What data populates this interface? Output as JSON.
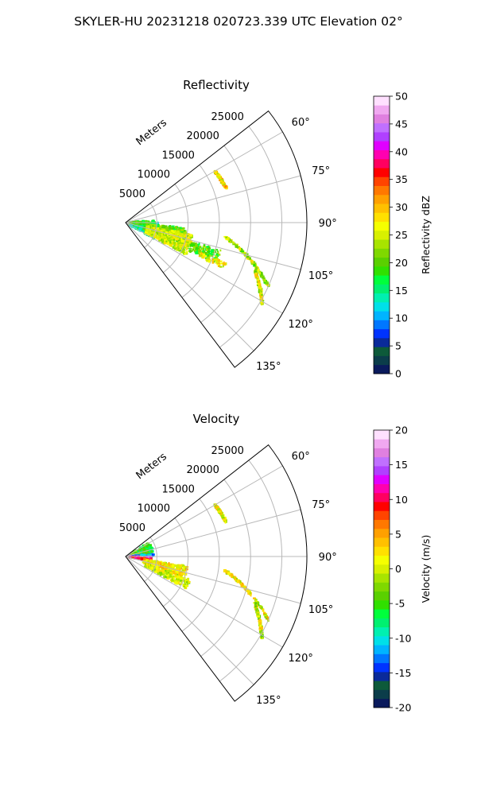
{
  "figure": {
    "suptitle": "SKYLER-HU  20231218  020723.339 UTC Elevation 02°"
  },
  "chart_data": [
    {
      "type": "heatmap",
      "projection": "polar-sector",
      "title": "Reflectivity",
      "radial_label": "Meters",
      "radial_ticks": [
        5000,
        10000,
        15000,
        20000,
        25000
      ],
      "radial_tick_labels": [
        "5000",
        "10000",
        "15000",
        "20000",
        "25000"
      ],
      "rlim": [
        0,
        29000
      ],
      "azimuth_ticks": [
        60,
        75,
        90,
        105,
        120,
        135
      ],
      "azimuth_tick_labels": [
        "60°",
        "75°",
        "90°",
        "105°",
        "120°",
        "135°"
      ],
      "azimuth_range": [
        52,
        143
      ],
      "grid": true,
      "colorbar": {
        "label": "Reflectivity dBZ",
        "range": [
          0,
          50
        ],
        "ticks": [
          0,
          5,
          10,
          15,
          20,
          25,
          30,
          35,
          40,
          45,
          50
        ],
        "tick_labels": [
          "0",
          "5",
          "10",
          "15",
          "20",
          "25",
          "30",
          "35",
          "40",
          "45",
          "50"
        ],
        "colors": [
          "#0a1a5c",
          "#0b3d4a",
          "#0d5a3a",
          "#0a2a9a",
          "#0033ff",
          "#0077ff",
          "#00b4ff",
          "#00e0e8",
          "#00f0b0",
          "#00f070",
          "#00ff3c",
          "#30e000",
          "#5ad000",
          "#7fd800",
          "#a8e400",
          "#d8f000",
          "#f5ff00",
          "#ffe000",
          "#ffc000",
          "#ffa000",
          "#ff7800",
          "#ff4400",
          "#ff0000",
          "#ff0060",
          "#ff00b0",
          "#e000ff",
          "#b040ff",
          "#c070ff",
          "#e080e0",
          "#f0a8f0",
          "#ffe0ff"
        ]
      },
      "regions": [
        {
          "az": [
            90,
            120
          ],
          "r": [
            400,
            5200
          ],
          "value": 15
        },
        {
          "az": [
            86,
            96
          ],
          "r": [
            300,
            4500
          ],
          "value": 20
        },
        {
          "az": [
            95,
            110
          ],
          "r": [
            3000,
            9800
          ],
          "value": 20
        },
        {
          "az": [
            100,
            118
          ],
          "r": [
            3500,
            11000
          ],
          "value": 25
        },
        {
          "az": [
            106,
            114
          ],
          "r": [
            11000,
            16000
          ],
          "value": 20
        },
        {
          "az": [
            112,
            115
          ],
          "r": [
            13000,
            17500
          ],
          "value": 27
        }
      ],
      "lines": [
        {
          "r": [
            16500,
            17000
          ],
          "az": [
            60,
            71
          ],
          "value": 28
        },
        {
          "r": [
            16000,
            25000
          ],
          "az": [
            98,
            114
          ],
          "value": 24
        },
        {
          "r": [
            22000,
            25500
          ],
          "az": [
            110,
            121
          ],
          "value": 25
        }
      ]
    },
    {
      "type": "heatmap",
      "projection": "polar-sector",
      "title": "Velocity",
      "radial_label": "Meters",
      "radial_ticks": [
        5000,
        10000,
        15000,
        20000,
        25000
      ],
      "radial_tick_labels": [
        "5000",
        "10000",
        "15000",
        "20000",
        "25000"
      ],
      "rlim": [
        0,
        29000
      ],
      "azimuth_ticks": [
        60,
        75,
        90,
        105,
        120,
        135
      ],
      "azimuth_tick_labels": [
        "60°",
        "75°",
        "90°",
        "105°",
        "120°",
        "135°"
      ],
      "azimuth_range": [
        52,
        143
      ],
      "grid": true,
      "colorbar": {
        "label": "Velocity (m/s)",
        "range": [
          -20,
          20
        ],
        "ticks": [
          -20,
          -15,
          -10,
          -5,
          0,
          5,
          10,
          15,
          20
        ],
        "tick_labels": [
          "-20",
          "-15",
          "-10",
          "-5",
          "0",
          "5",
          "10",
          "15",
          "20"
        ],
        "colors": [
          "#0a1a5c",
          "#0b3d4a",
          "#0d5a3a",
          "#0a2a9a",
          "#0033ff",
          "#0077ff",
          "#00b4ff",
          "#00e0e8",
          "#00f0b0",
          "#00f070",
          "#00ff3c",
          "#30e000",
          "#5ad000",
          "#7fd800",
          "#a8e400",
          "#d8f000",
          "#f5ff00",
          "#ffe000",
          "#ffc000",
          "#ffa000",
          "#ff7800",
          "#ff4400",
          "#ff0000",
          "#ff0060",
          "#ff00b0",
          "#e000ff",
          "#b040ff",
          "#c070ff",
          "#e080e0",
          "#f0a8f0",
          "#ffe0ff"
        ]
      },
      "regions": [
        {
          "az": [
            60,
            85
          ],
          "r": [
            400,
            4500
          ],
          "value": -5
        },
        {
          "az": [
            84,
            92
          ],
          "r": [
            300,
            4500
          ],
          "value": -12
        },
        {
          "az": [
            91,
            96
          ],
          "r": [
            300,
            4000
          ],
          "value": 14
        },
        {
          "az": [
            95,
            99
          ],
          "r": [
            300,
            4200
          ],
          "value": 9
        },
        {
          "az": [
            99,
            110
          ],
          "r": [
            3000,
            10000
          ],
          "value": 2
        },
        {
          "az": [
            110,
            118
          ],
          "r": [
            3500,
            11000
          ],
          "value": 0
        }
      ],
      "lines": [
        {
          "r": [
            16500,
            17000
          ],
          "az": [
            60,
            71
          ],
          "value": 1
        },
        {
          "r": [
            16000,
            25000
          ],
          "az": [
            98,
            114
          ],
          "value": 1
        },
        {
          "r": [
            22000,
            25500
          ],
          "az": [
            110,
            121
          ],
          "value": 0
        }
      ]
    }
  ]
}
